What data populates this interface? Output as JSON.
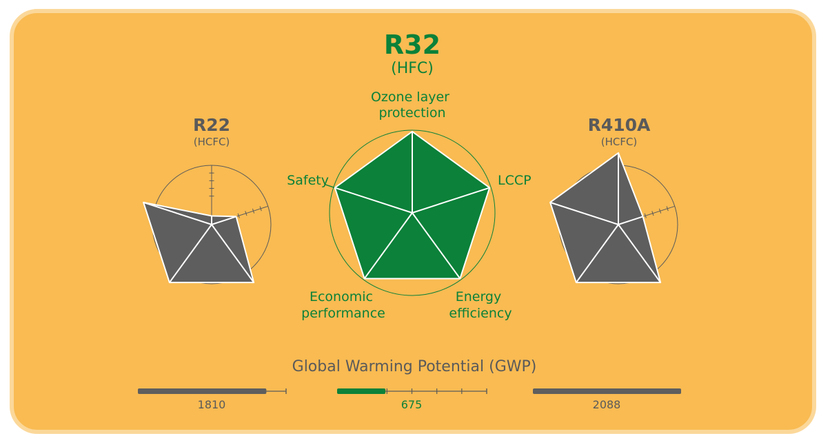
{
  "colors": {
    "background": "#F9BB52",
    "frame_border": "#FBD89A",
    "accent_green": "#0B8139",
    "gray_fill": "#5E5E5E",
    "label_gray": "#5A5A5A"
  },
  "chart_data": [
    {
      "type": "radar",
      "name": "R22",
      "subtitle": "(HCFC)",
      "axes": [
        "Ozone layer protection",
        "LCCP",
        "Energy efficiency",
        "Economic performance",
        "Safety"
      ],
      "values": [
        0.12,
        0.36,
        1.0,
        1.0,
        1.0
      ],
      "scale_ticks": 4
    },
    {
      "type": "radar",
      "name": "R32",
      "subtitle": "(HFC)",
      "axes": [
        "Ozone layer protection",
        "LCCP",
        "Energy efficiency",
        "Economic performance",
        "Safety"
      ],
      "axis_labels": [
        [
          "Ozone layer",
          "protection"
        ],
        [
          "LCCP"
        ],
        [
          "Energy",
          "efficiency"
        ],
        [
          "Economic",
          "performance"
        ],
        [
          "Safety"
        ]
      ],
      "values": [
        1.0,
        1.0,
        1.0,
        1.0,
        1.0
      ]
    },
    {
      "type": "radar",
      "name": "R410A",
      "subtitle": "(HCFC)",
      "axes": [
        "Ozone layer protection",
        "LCCP",
        "Energy efficiency",
        "Economic performance",
        "Safety"
      ],
      "values": [
        1.0,
        0.36,
        1.0,
        1.0,
        1.0
      ],
      "scale_ticks": 4
    },
    {
      "type": "bar",
      "title": "Global Warming Potential (GWP)",
      "categories": [
        "R22",
        "R32",
        "R410A"
      ],
      "values": [
        1810,
        675,
        2088
      ],
      "value_labels": [
        "1810",
        "675",
        "2088"
      ],
      "range": [
        0,
        2088
      ],
      "ticks": 6
    }
  ]
}
